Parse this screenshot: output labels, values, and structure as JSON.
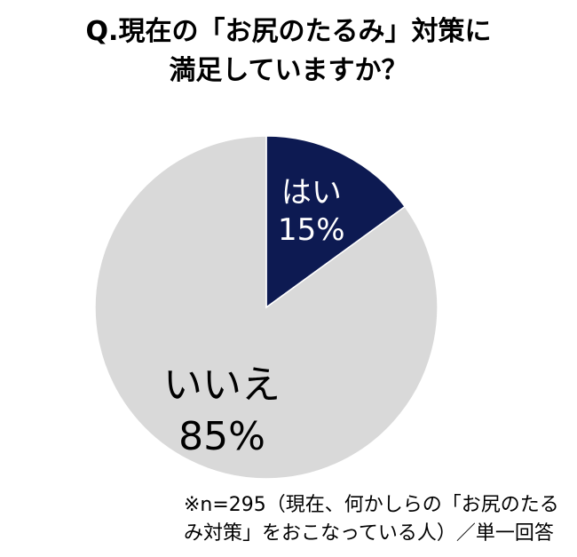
{
  "title_lines": [
    "Q.現在の「お尻のたるみ」対策に",
    "満足していますか？"
  ],
  "footnote_lines": [
    "※n=295（現在、何かしらの「お尻のたる",
    "み対策」をおこなっている人）／単一回答"
  ],
  "colors": {
    "yes": "#0d1a52",
    "no": "#d9d9d9",
    "border": "#ffffff",
    "yes_text": "#ffffff",
    "no_text": "#000000"
  },
  "chart_data": {
    "type": "pie",
    "slices": [
      {
        "label": "はい",
        "value": 15,
        "value_label": "15%"
      },
      {
        "label": "いいえ",
        "value": 85,
        "value_label": "85%"
      }
    ]
  }
}
